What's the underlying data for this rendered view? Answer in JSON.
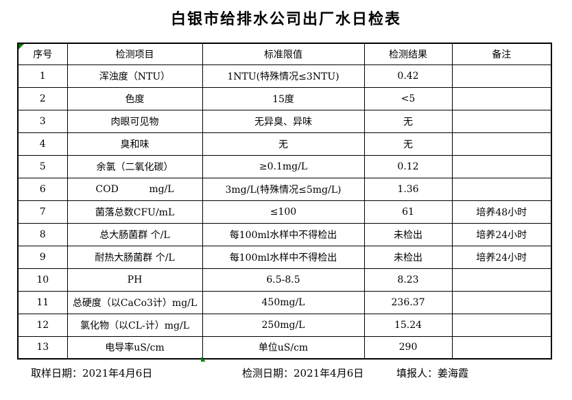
{
  "title": "白银市给排水公司出厂水日检表",
  "table": {
    "headers": [
      "序号",
      "检测项目",
      "标准限值",
      "检测结果",
      "备注"
    ],
    "rows": [
      {
        "no": "1",
        "item": "浑浊度（NTU）",
        "limit": "1NTU(特殊情况≤3NTU)",
        "result": "0.42",
        "remark": ""
      },
      {
        "no": "2",
        "item": "色度",
        "limit": "15度",
        "result": "<5",
        "remark": ""
      },
      {
        "no": "3",
        "item": "肉眼可见物",
        "limit": "无异臭、异味",
        "result": "无",
        "remark": ""
      },
      {
        "no": "4",
        "item": "臭和味",
        "limit": "无",
        "result": "无",
        "remark": ""
      },
      {
        "no": "5",
        "item": "余氯（二氧化碳）",
        "limit": "≥0.1mg/L",
        "result": "0.12",
        "remark": ""
      },
      {
        "no": "6",
        "item": "COD          mg/L",
        "limit": "3mg/L(特殊情况≤5mg/L)",
        "result": "1.36",
        "remark": ""
      },
      {
        "no": "7",
        "item": "菌落总数CFU/mL",
        "limit": "≤100",
        "result": "61",
        "remark": "培养48小时"
      },
      {
        "no": "8",
        "item": "总大肠菌群 个/L",
        "limit": "每100ml水样中不得检出",
        "result": "未检出",
        "remark": "培养24小时"
      },
      {
        "no": "9",
        "item": "耐热大肠菌群 个/L",
        "limit": "每100ml水样中不得检出",
        "result": "未检出",
        "remark": "培养24小时"
      },
      {
        "no": "10",
        "item": "PH",
        "limit": "6.5-8.5",
        "result": "8.23",
        "remark": ""
      },
      {
        "no": "11",
        "item": "总硬度（以CaCo3计）mg/L",
        "limit": "450mg/L",
        "result": "236.37",
        "remark": ""
      },
      {
        "no": "12",
        "item": "氯化物（以CL-计）mg/L",
        "limit": "250mg/L",
        "result": "15.24",
        "remark": ""
      },
      {
        "no": "13",
        "item": "电导率uS/cm",
        "limit": "单位uS/cm",
        "result": "290",
        "remark": ""
      }
    ]
  },
  "footer": {
    "sample_date": "取样日期：2021年4月6日",
    "test_date": "检测日期：2021年4月6日",
    "reporter": "填报人：姜海霞"
  },
  "colors": {
    "background": "#ffffff",
    "text": "#000000",
    "border": "#000000",
    "marker_green": "#008000"
  }
}
